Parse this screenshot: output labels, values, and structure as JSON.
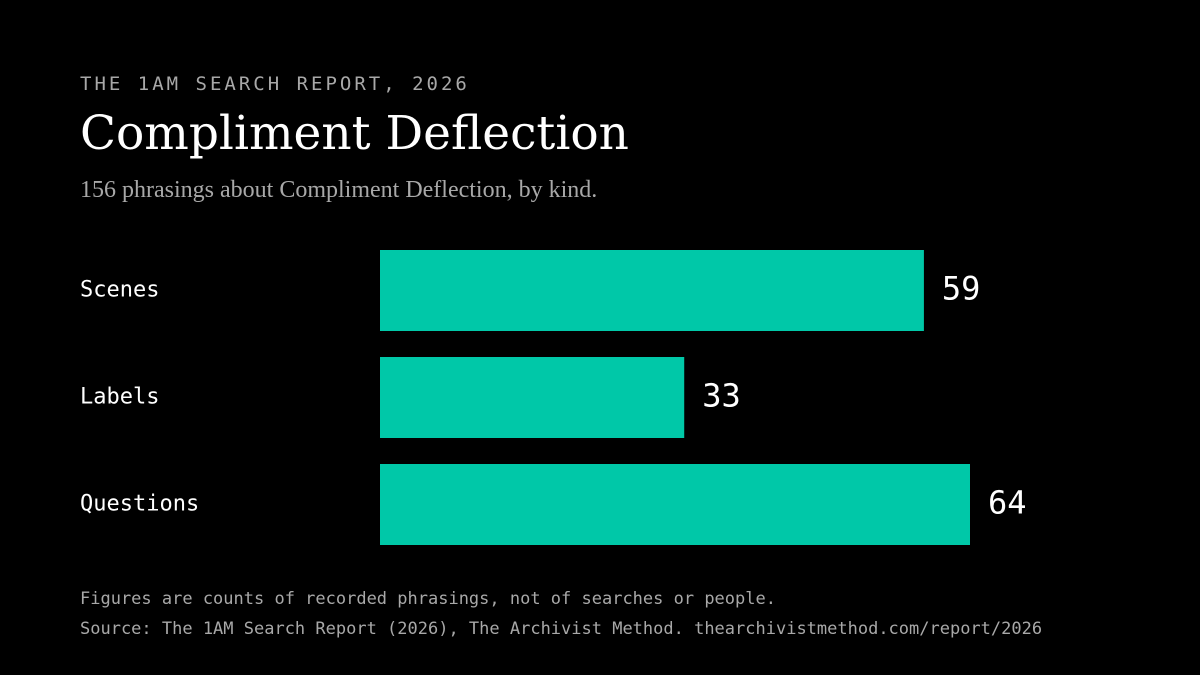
{
  "header": {
    "kicker": "THE 1AM SEARCH REPORT, 2026",
    "title": "Compliment Deflection",
    "subtitle": "156 phrasings about Compliment Deflection, by kind."
  },
  "footer": {
    "note": "Figures are counts of recorded phrasings, not of searches or people.",
    "source": "Source: The 1AM Search Report (2026), The Archivist Method. thearchivistmethod.com/report/2026"
  },
  "colors": {
    "background": "#000000",
    "bar": "#00c8a8",
    "text": "#ffffff",
    "muted": "#a8a8a8"
  },
  "chart_data": {
    "type": "bar",
    "orientation": "horizontal",
    "categories": [
      "Scenes",
      "Labels",
      "Questions"
    ],
    "values": [
      59,
      33,
      64
    ],
    "title": "Compliment Deflection",
    "subtitle": "156 phrasings about Compliment Deflection, by kind.",
    "xlabel": "",
    "ylabel": "",
    "xlim": [
      0,
      64
    ],
    "grid": false,
    "legend": "none",
    "data_labels": true
  }
}
